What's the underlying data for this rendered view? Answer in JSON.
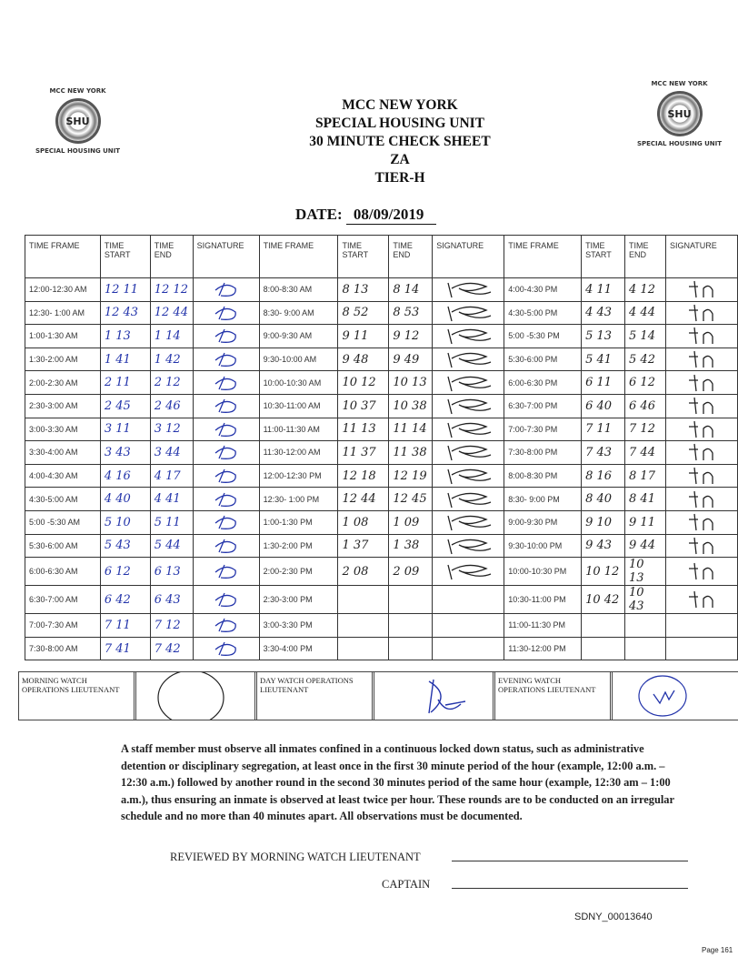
{
  "logos": {
    "top": "MCC NEW YORK",
    "bottom": "SPECIAL HOUSING UNIT",
    "seal": "SHU"
  },
  "title": {
    "line1": "MCC NEW YORK",
    "line2": "SPECIAL HOUSING UNIT",
    "line3": "30 MINUTE CHECK SHEET",
    "line4": "ZA",
    "line5": "TIER-H"
  },
  "date": {
    "label": "DATE:",
    "value": "08/09/2019"
  },
  "table": {
    "headers": [
      "TIME FRAME",
      "TIME START",
      "TIME END",
      "SIGNATURE",
      "TIME FRAME",
      "TIME START",
      "TIME END",
      "SIGNATURE",
      "TIME FRAME",
      "TIME START",
      "TIME END",
      "SIGNATURE"
    ],
    "rows": [
      [
        [
          "12:00-12:30 AM",
          "12 11",
          "12 12"
        ],
        [
          "8:00-8:30 AM",
          "8 13",
          "8 14"
        ],
        [
          "4:00-4:30 PM",
          "4 11",
          "4 12"
        ]
      ],
      [
        [
          "12:30- 1:00 AM",
          "12 43",
          "12 44"
        ],
        [
          "8:30- 9:00 AM",
          "8 52",
          "8 53"
        ],
        [
          "4:30-5:00 PM",
          "4 43",
          "4 44"
        ]
      ],
      [
        [
          "1:00-1:30 AM",
          "1 13",
          "1 14"
        ],
        [
          "9:00-9:30 AM",
          "9 11",
          "9 12"
        ],
        [
          "5:00 -5:30 PM",
          "5 13",
          "5 14"
        ]
      ],
      [
        [
          "1:30-2:00 AM",
          "1 41",
          "1 42"
        ],
        [
          "9:30-10:00 AM",
          "9 48",
          "9 49"
        ],
        [
          "5:30-6:00 PM",
          "5 41",
          "5 42"
        ]
      ],
      [
        [
          "2:00-2:30 AM",
          "2 11",
          "2 12"
        ],
        [
          "10:00-10:30 AM",
          "10 12",
          "10 13"
        ],
        [
          "6:00-6:30 PM",
          "6 11",
          "6 12"
        ]
      ],
      [
        [
          "2:30-3:00 AM",
          "2 45",
          "2 46"
        ],
        [
          "10:30-11:00 AM",
          "10 37",
          "10 38"
        ],
        [
          "6:30-7:00 PM",
          "6 40",
          "6 46"
        ]
      ],
      [
        [
          "3:00-3:30 AM",
          "3 11",
          "3 12"
        ],
        [
          "11:00-11:30 AM",
          "11 13",
          "11 14"
        ],
        [
          "7:00-7:30 PM",
          "7 11",
          "7 12"
        ]
      ],
      [
        [
          "3:30-4:00 AM",
          "3 43",
          "3 44"
        ],
        [
          "11:30-12:00 AM",
          "11 37",
          "11 38"
        ],
        [
          "7:30-8:00 PM",
          "7 43",
          "7 44"
        ]
      ],
      [
        [
          "4:00-4:30 AM",
          "4 16",
          "4 17"
        ],
        [
          "12:00-12:30 PM",
          "12 18",
          "12 19"
        ],
        [
          "8:00-8:30 PM",
          "8 16",
          "8 17"
        ]
      ],
      [
        [
          "4:30-5:00 AM",
          "4 40",
          "4 41"
        ],
        [
          "12:30- 1:00 PM",
          "12 44",
          "12 45"
        ],
        [
          "8:30- 9:00 PM",
          "8 40",
          "8 41"
        ]
      ],
      [
        [
          "5:00 -5:30 AM",
          "5 10",
          "5 11"
        ],
        [
          "1:00-1:30 PM",
          "1 08",
          "1 09"
        ],
        [
          "9:00-9:30 PM",
          "9 10",
          "9 11"
        ]
      ],
      [
        [
          "5:30-6:00 AM",
          "5 43",
          "5 44"
        ],
        [
          "1:30-2:00 PM",
          "1 37",
          "1 38"
        ],
        [
          "9:30-10:00 PM",
          "9 43",
          "9 44"
        ]
      ],
      [
        [
          "6:00-6:30 AM",
          "6 12",
          "6 13"
        ],
        [
          "2:00-2:30 PM",
          "2 08",
          "2 09"
        ],
        [
          "10:00-10:30 PM",
          "10 12",
          "10 13"
        ]
      ],
      [
        [
          "6:30-7:00 AM",
          "6 42",
          "6 43"
        ],
        [
          "2:30-3:00 PM",
          "",
          ""
        ],
        [
          "10:30-11:00 PM",
          "10 42",
          "10 43"
        ]
      ],
      [
        [
          "7:00-7:30 AM",
          "7 11",
          "7 12"
        ],
        [
          "3:00-3:30 PM",
          "",
          ""
        ],
        [
          "11:00-11:30 PM",
          "",
          ""
        ]
      ],
      [
        [
          "7:30-8:00 AM",
          "7 41",
          "7 42"
        ],
        [
          "3:30-4:00 PM",
          "",
          ""
        ],
        [
          "11:30-12:00 PM",
          "",
          ""
        ]
      ]
    ]
  },
  "watch": {
    "morning": "MORNING WATCH OPERATIONS LIEUTENANT",
    "day": "DAY WATCH OPERATIONS LIEUTENANT",
    "evening": "EVENING WATCH OPERATIONS LIEUTENANT"
  },
  "instructions": "A staff member must observe all inmates confined in a continuous locked down status, such as administrative detention or disciplinary segregation, at least once in the first 30 minute period of the hour (example, 12:00 a.m. – 12:30 a.m.) followed by another round in the second 30 minutes period of the same hour (example, 12:30 am – 1:00 a.m.), thus ensuring an inmate is observed at least twice per hour. These rounds are to be conducted on an irregular schedule and no more than 40 minutes apart. All observations must be documented.",
  "review": {
    "morning": "REVIEWED BY MORNING WATCH LIEUTENANT",
    "captain": "CAPTAIN"
  },
  "footer": {
    "bates": "SDNY_00013640",
    "page": "Page 161"
  },
  "colors": {
    "ink_blue": "#2233aa",
    "ink_black": "#222222"
  }
}
